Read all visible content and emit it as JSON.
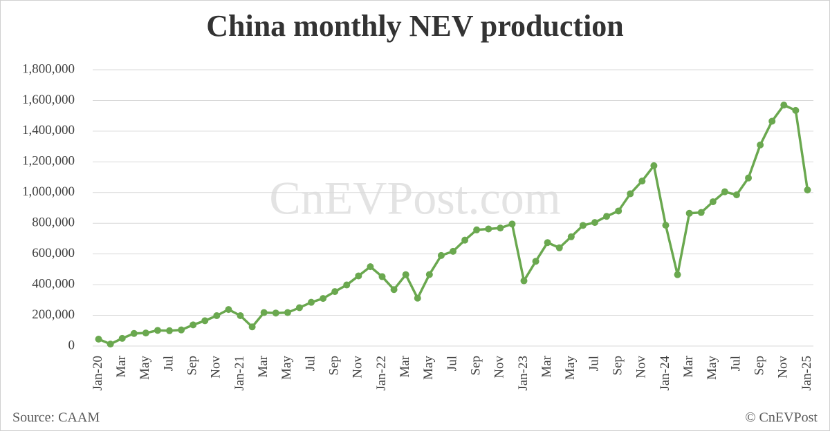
{
  "chart_data": {
    "type": "line",
    "title": "China monthly NEV production",
    "watermark": "CnEVPost.com",
    "source": "Source: CAAM",
    "credit": "© CnEVPost",
    "categories": [
      "Jan-20",
      null,
      "Mar",
      null,
      "May",
      null,
      "Jul",
      null,
      "Sep",
      null,
      "Nov",
      null,
      "Jan-21",
      null,
      "Mar",
      null,
      "May",
      null,
      "Jul",
      null,
      "Sep",
      null,
      "Nov",
      null,
      "Jan-22",
      null,
      "Mar",
      null,
      "May",
      null,
      "Jul",
      null,
      "Sep",
      null,
      "Nov",
      null,
      "Jan-23",
      null,
      "Mar",
      null,
      "May",
      null,
      "Jul",
      null,
      "Sep",
      null,
      "Nov",
      null,
      "Jan-24",
      null,
      "Mar",
      null,
      "May",
      null,
      "Jul",
      null,
      "Sep",
      null,
      "Nov",
      null,
      "Jan-25"
    ],
    "values": [
      45000,
      13000,
      50000,
      82000,
      85000,
      102000,
      100000,
      105000,
      138000,
      165000,
      198000,
      238000,
      198000,
      125000,
      218000,
      215000,
      218000,
      250000,
      285000,
      310000,
      355000,
      398000,
      457000,
      517000,
      452000,
      368000,
      465000,
      312000,
      466000,
      590000,
      617000,
      690000,
      757000,
      763000,
      769000,
      795000,
      425000,
      552000,
      674000,
      640000,
      712000,
      786000,
      805000,
      845000,
      880000,
      992000,
      1075000,
      1175000,
      787000,
      465000,
      865000,
      870000,
      940000,
      1005000,
      985000,
      1095000,
      1310000,
      1465000,
      1570000,
      1535000,
      1017000
    ],
    "color": "#6aa84f",
    "ylim": [
      0,
      1800000
    ],
    "yticks": [
      0,
      {
        "value": 200000,
        "label": "200,000"
      },
      {
        "value": 400000,
        "label": "400,000"
      },
      {
        "value": 600000,
        "label": "600,000"
      },
      {
        "value": 800000,
        "label": "800,000"
      },
      {
        "value": 1000000,
        "label": "1,000,000"
      },
      {
        "value": 1200000,
        "label": "1,200,000"
      },
      {
        "value": 1400000,
        "label": "1,400,000"
      },
      {
        "value": 1600000,
        "label": "1,600,000"
      },
      {
        "value": 1800000,
        "label": "1,800,000"
      }
    ],
    "grid": true
  }
}
